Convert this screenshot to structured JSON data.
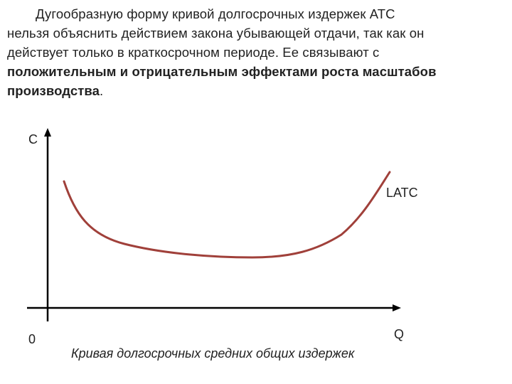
{
  "paragraph": {
    "line1": "Дугообразную форму кривой долгосрочных издержек АТС",
    "line2": "нельзя объяснить действием закона убывающей отдачи, так как он",
    "line3": "действует только в краткосрочном периоде. Ее связывают с",
    "line4_bold": "положительным и отрицательным эффектами роста масштабов",
    "line5_bold": "производства",
    "line5_end": "."
  },
  "diagram": {
    "y_axis_label": "C",
    "x_axis_label": "Q",
    "origin_label": "0",
    "curve_label": "LATC",
    "curve_color": "#a0403a",
    "axis_color": "#000000"
  },
  "caption": "Кривая долгосрочных средних общих издержек"
}
